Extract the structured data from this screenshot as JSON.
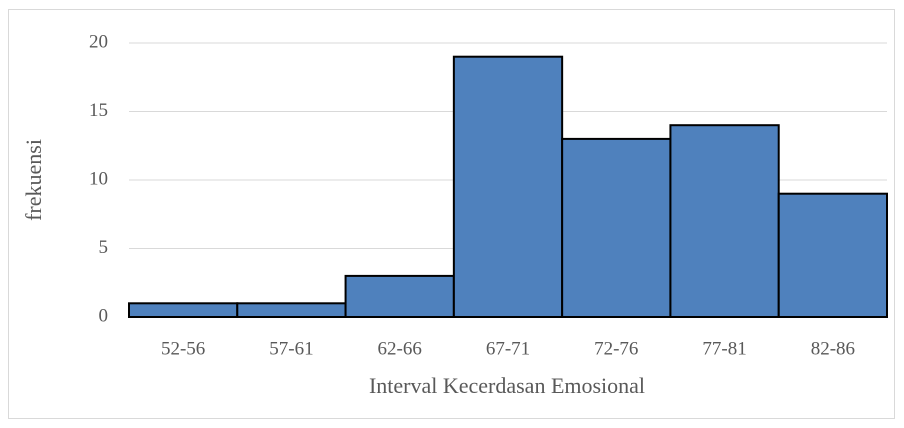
{
  "chart_data": {
    "type": "bar",
    "x_label": "Interval Kecerdasan Emosional",
    "y_label": "frekuensi",
    "categories": [
      "52-56",
      "57-61",
      "62-66",
      "67-71",
      "72-76",
      "77-81",
      "82-86"
    ],
    "values": [
      1,
      1,
      3,
      19,
      13,
      14,
      9
    ],
    "color": "#4f81bd",
    "ylim": [
      0,
      20
    ],
    "yticks": [
      0,
      5,
      10,
      15,
      20
    ],
    "grid": true
  }
}
